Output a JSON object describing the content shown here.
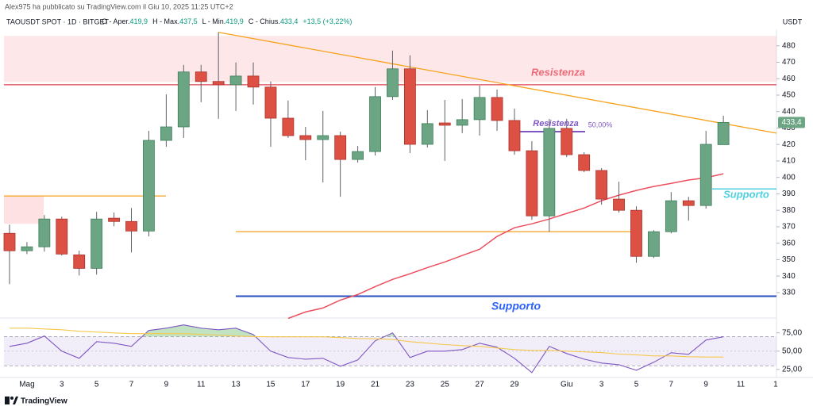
{
  "header": {
    "author": "Alex975 ha pubblicato su TradingView.com il Giu 10, 2025 11:25 UTC+2",
    "symbol": "TAOUSDT SPOT · 1D · BITGET",
    "ohlc": [
      {
        "label": "O - Aper.",
        "value": "419,9"
      },
      {
        "label": "H - Max.",
        "value": "437,5"
      },
      {
        "label": "L - Min.",
        "value": "419,9"
      },
      {
        "label": "C - Chius.",
        "value": "433,4"
      }
    ],
    "change": "+13,5 (+3,22%)",
    "currency": "USDT"
  },
  "footer": {
    "brand": "TradingView"
  },
  "chart_data": [
    {
      "type": "candlestick",
      "categories": [
        null,
        "Mag",
        null,
        "3",
        null,
        "5",
        null,
        "7",
        null,
        "9",
        null,
        "11",
        null,
        "13",
        null,
        "15",
        null,
        "17",
        null,
        "19",
        null,
        "21",
        null,
        "23",
        null,
        "25",
        null,
        "27",
        null,
        "29",
        null,
        null,
        "Giu",
        null,
        "3",
        null,
        "5",
        null,
        "7",
        null,
        "9",
        null,
        "11",
        null,
        "1"
      ],
      "open": [
        366,
        355.4,
        357.8,
        374.7,
        352.9,
        344.7,
        375.2,
        373.2,
        367.4,
        422.5,
        430.7,
        464.1,
        458.3,
        456.3,
        461.6,
        454.9,
        436,
        425.4,
        423,
        425.4,
        410.9,
        415.7,
        449.1,
        466,
        420.1,
        433.1,
        431.7,
        435.1,
        448.6,
        434.6,
        416.2,
        376.6,
        429.8,
        413.8,
        404.2,
        386.8,
        380,
        352,
        367,
        385.8,
        382.9,
        419.9,
        null,
        null,
        null
      ],
      "high": [
        371.3,
        360.7,
        377.1,
        376.1,
        355.4,
        379,
        378.6,
        381.4,
        428.3,
        450.5,
        468.4,
        468.4,
        488.2,
        469.9,
        469.9,
        458.3,
        446.7,
        430.7,
        440.4,
        427.8,
        419.1,
        454.9,
        477.1,
        474.2,
        440.9,
        447.1,
        447.6,
        455.8,
        453.4,
        441.8,
        422,
        435.6,
        435.6,
        415.3,
        405.6,
        397.4,
        382.4,
        367.9,
        391.1,
        388.2,
        428.3,
        437.5,
        null,
        null,
        null
      ],
      "low": [
        335.1,
        353.4,
        354.9,
        352.5,
        340.4,
        340.9,
        370.3,
        354.4,
        364.1,
        418.6,
        424,
        445.7,
        435.6,
        440.4,
        444.3,
        418.6,
        424,
        410.4,
        396.9,
        388.2,
        409,
        413.3,
        447.1,
        414.8,
        418.2,
        410,
        426.9,
        425.4,
        428.3,
        413.8,
        374.2,
        367,
        412.4,
        403.2,
        383.4,
        378.6,
        348.1,
        351,
        366,
        373.7,
        381,
        419.9,
        null,
        null,
        null
      ],
      "close": [
        355.4,
        357.8,
        374.7,
        353.4,
        344.7,
        374.7,
        373.2,
        367.4,
        422.5,
        430.7,
        464.1,
        458.3,
        456.3,
        461.6,
        454.9,
        436,
        425.4,
        423,
        425.4,
        410.9,
        415.7,
        449.1,
        466,
        420.1,
        432.7,
        431.7,
        435.1,
        448.6,
        434.6,
        416.2,
        376.6,
        429.8,
        413.8,
        404.2,
        386.8,
        380,
        352,
        367,
        385.8,
        382.9,
        420.1,
        433.4,
        null,
        null,
        null
      ],
      "last_price_label": "433,4",
      "up_color": "#6ba583",
      "down_color": "#dd5144",
      "wick_color": "#5d606b",
      "moving_average": {
        "color": "#ec4f5d",
        "values": [
          null,
          null,
          null,
          null,
          null,
          null,
          null,
          null,
          null,
          null,
          null,
          null,
          null,
          null,
          null,
          null,
          314.3,
          318.2,
          320.6,
          325.4,
          328.8,
          333.6,
          338,
          341.4,
          345.2,
          348.6,
          352.5,
          356.3,
          364.1,
          369.4,
          371.8,
          374.7,
          378.1,
          381.4,
          385.8,
          389.2,
          392.1,
          394.5,
          396.4,
          398.4,
          399.8,
          402.2,
          null,
          null,
          null
        ]
      },
      "zones": [
        {
          "from": 486,
          "to": 458,
          "color": "rgba(242,54,69,0.12)"
        },
        {
          "from": 388.7,
          "to": 371.8,
          "color": "rgba(242,54,69,0.15)"
        }
      ],
      "hlines": [
        {
          "value": 456.3,
          "color": "#e2414d"
        },
        {
          "value": 388.7,
          "color": "#f7a21b"
        },
        {
          "value": 367,
          "color": "#f7a21b"
        },
        {
          "value": 327.8,
          "color": "#2a4fbf"
        },
        {
          "value": 427.8,
          "color": "#7e57c2"
        },
        {
          "value": 393,
          "color": "#4dd0e1"
        }
      ],
      "trendline": {
        "values": [
          488.2,
          426.9
        ],
        "color": "#f7a21b"
      },
      "annotations": [
        {
          "text": "Resistenza",
          "color": "#ec6b78"
        },
        {
          "text": "Resistenza",
          "color": "#7e57c2"
        },
        {
          "text": "50,00%",
          "color": "#7e57c2"
        },
        {
          "text": "Supporto",
          "color": "#4dd0e1"
        },
        {
          "text": "Supporto",
          "color": "#2962ff"
        }
      ],
      "ylim": [
        315,
        490
      ],
      "yticks": [
        330,
        340,
        350,
        360,
        370,
        380,
        390,
        400,
        410,
        420,
        430,
        440,
        450,
        460,
        470,
        480
      ],
      "grid": false
    },
    {
      "type": "line",
      "series": [
        {
          "color": "#7e57c2",
          "values": [
            56.5,
            60.9,
            70.7,
            50,
            40.2,
            63,
            60.9,
            56.5,
            78.3,
            81.5,
            85.9,
            81.5,
            79.3,
            81.5,
            72.8,
            50,
            41.3,
            39.1,
            40.2,
            29.3,
            38,
            64.1,
            75,
            41.3,
            50,
            50,
            52.2,
            60.9,
            55.4,
            40.2,
            20.7,
            56.5,
            46.7,
            39.1,
            33.7,
            31.5,
            23.9,
            34.8,
            47.8,
            45.7,
            65.2,
            69.6,
            null,
            null,
            null
          ]
        },
        {
          "color": "#f5c84c",
          "values": [
            81.5,
            81.5,
            80.4,
            79.3,
            77.2,
            76.1,
            75,
            74,
            74,
            74,
            74,
            73,
            72,
            70.7,
            70,
            69.6,
            69.6,
            69.6,
            69.6,
            68.5,
            67.4,
            67,
            66,
            63,
            61,
            59,
            57.6,
            56.5,
            54.3,
            52.2,
            51,
            51,
            50,
            49,
            48,
            46,
            45,
            43.5,
            43.5,
            42.4,
            42,
            42,
            null,
            null,
            null
          ]
        }
      ],
      "bands": [
        70,
        30
      ],
      "middle": 50,
      "band_color": "rgba(126,87,194,0.10)",
      "overbought_color": "rgba(76,175,80,0.35)",
      "ylim": [
        14,
        91
      ],
      "yticks": [
        {
          "value": 75,
          "label": "75,00"
        },
        {
          "value": 50,
          "label": "50,00"
        },
        {
          "value": 25,
          "label": "25,00"
        }
      ],
      "grid": false
    }
  ]
}
